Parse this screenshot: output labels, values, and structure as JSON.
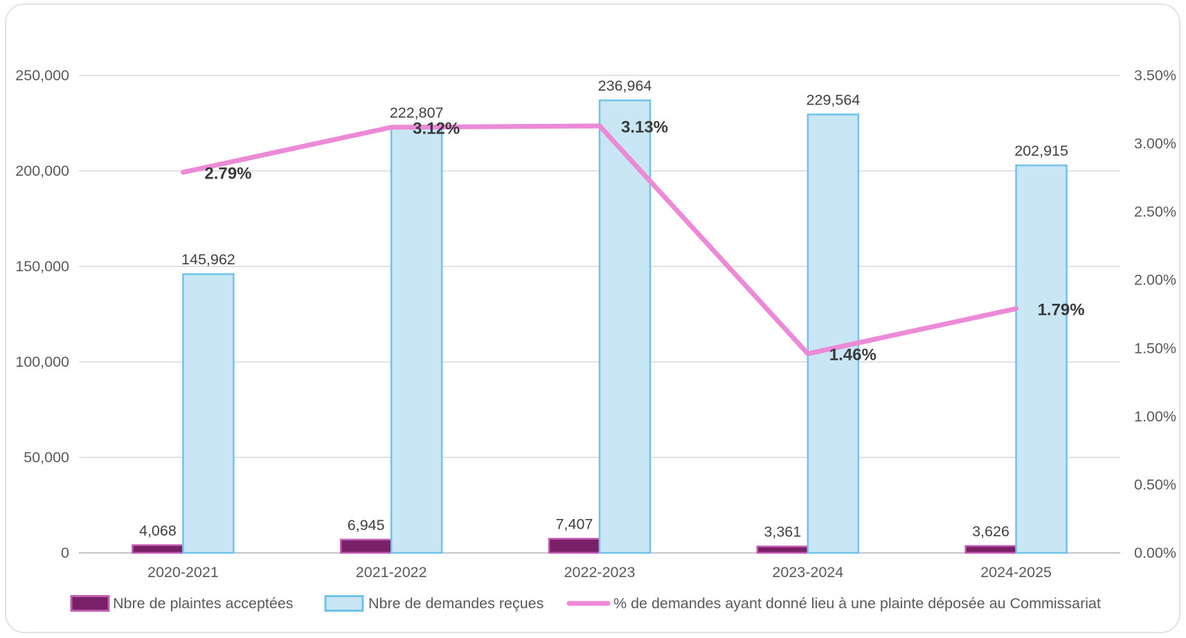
{
  "chart_data": {
    "type": "combo-bar-line",
    "title": "",
    "categories": [
      "2020-2021",
      "2021-2022",
      "2022-2023",
      "2023-2024",
      "2024-2025"
    ],
    "series": [
      {
        "name": "Nbre de plaintes acceptées",
        "type": "bar",
        "axis": "left",
        "values": [
          4068,
          6945,
          7407,
          3361,
          3626
        ],
        "labels": [
          "4,068",
          "6,945",
          "7,407",
          "3,361",
          "3,626"
        ],
        "fill": "#7A2068",
        "border": "#C25EB1"
      },
      {
        "name": "Nbre de demandes reçues",
        "type": "bar",
        "axis": "left",
        "values": [
          145962,
          222807,
          236964,
          229564,
          202915
        ],
        "labels": [
          "145,962",
          "222,807",
          "236,964",
          "229,564",
          "202,915"
        ],
        "fill": "#C9E6F5",
        "border": "#6FC2E9"
      },
      {
        "name": "% de demandes ayant donné lieu à une plainte déposée au Commissariat",
        "type": "line",
        "axis": "right",
        "values": [
          2.79,
          3.12,
          3.13,
          1.46,
          1.79
        ],
        "labels": [
          "2.79%",
          "3.12%",
          "3.13%",
          "1.46%",
          "1.79%"
        ],
        "color": "#EC8AD8"
      }
    ],
    "left_axis": {
      "min": 0,
      "max": 250000,
      "tick_step": 50000,
      "ticks": [
        "0",
        "50,000",
        "100,000",
        "150,000",
        "200,000",
        "250,000"
      ]
    },
    "right_axis": {
      "min": 0,
      "max": 3.5,
      "tick_step": 0.5,
      "ticks": [
        "0.00%",
        "0.50%",
        "1.00%",
        "1.50%",
        "2.00%",
        "2.50%",
        "3.00%",
        "3.50%"
      ]
    },
    "grid": true,
    "legend_position": "bottom"
  },
  "colors": {
    "grid_line": "#D9D9D9",
    "axis_line": "#C6C6C6",
    "axis_text": "#595959",
    "data_label_text": "#404040",
    "line_label_text": "#3A3A3A",
    "legend_text": "#595959",
    "card_border": "#E2E2E2",
    "background": "#FFFFFF"
  }
}
